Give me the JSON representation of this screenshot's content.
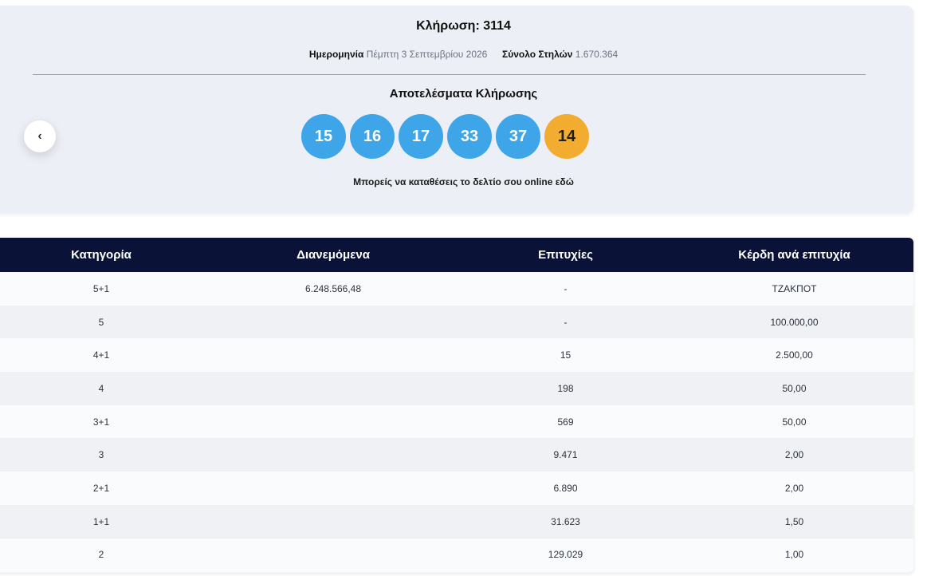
{
  "draw": {
    "title": "Κλήρωση: 3114",
    "date_label": "Ημερομηνία",
    "date_value": "Πέμπτη 3 Σεπτεμβρίου 2026",
    "columns_label": "Σύνολο Στηλών",
    "columns_value": "1.670.364",
    "results_title": "Αποτελέσματα Κλήρωσης",
    "numbers": [
      "15",
      "16",
      "17",
      "33",
      "37"
    ],
    "bonus_number": "14",
    "online_note": "Μπορείς να καταθέσεις το δελτίο σου online εδώ",
    "prev_icon": "chevron-left-icon",
    "colors": {
      "ball": "#3ea6e8",
      "bonus": "#f2ac2f",
      "header": "#0b1238"
    }
  },
  "table": {
    "headers": [
      "Κατηγορία",
      "Διανεμόμενα",
      "Επιτυχίες",
      "Κέρδη ανά επιτυχία"
    ],
    "rows": [
      {
        "category": "5+1",
        "distributed": "6.248.566,48",
        "winners": "-",
        "prize": "ΤΖΑΚΠΟΤ"
      },
      {
        "category": "5",
        "distributed": "",
        "winners": "-",
        "prize": "100.000,00"
      },
      {
        "category": "4+1",
        "distributed": "",
        "winners": "15",
        "prize": "2.500,00"
      },
      {
        "category": "4",
        "distributed": "",
        "winners": "198",
        "prize": "50,00"
      },
      {
        "category": "3+1",
        "distributed": "",
        "winners": "569",
        "prize": "50,00"
      },
      {
        "category": "3",
        "distributed": "",
        "winners": "9.471",
        "prize": "2,00"
      },
      {
        "category": "2+1",
        "distributed": "",
        "winners": "6.890",
        "prize": "2,00"
      },
      {
        "category": "1+1",
        "distributed": "",
        "winners": "31.623",
        "prize": "1,50"
      },
      {
        "category": "2",
        "distributed": "",
        "winners": "129.029",
        "prize": "1,00"
      }
    ]
  }
}
